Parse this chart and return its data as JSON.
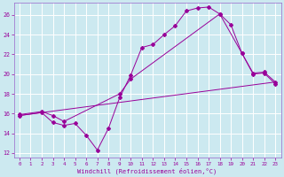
{
  "xlabel": "Windchill (Refroidissement éolien,°C)",
  "background_color": "#cce9f0",
  "grid_color": "#ffffff",
  "line_color": "#990099",
  "spine_color": "#9966cc",
  "xlim": [
    -0.5,
    23.5
  ],
  "ylim": [
    11.5,
    27.2
  ],
  "xticks": [
    0,
    1,
    2,
    3,
    4,
    5,
    6,
    7,
    8,
    9,
    10,
    11,
    12,
    13,
    14,
    15,
    16,
    17,
    18,
    19,
    20,
    21,
    22,
    23
  ],
  "yticks": [
    12,
    14,
    16,
    18,
    20,
    22,
    24,
    26
  ],
  "series1_x": [
    0,
    2,
    3,
    4,
    5,
    6,
    7,
    8,
    9,
    10,
    11,
    12,
    13,
    14,
    15,
    16,
    17,
    18,
    19,
    20,
    21,
    22,
    23
  ],
  "series1_y": [
    15.8,
    16.1,
    15.1,
    14.8,
    15.0,
    13.8,
    12.3,
    14.5,
    17.6,
    19.9,
    22.7,
    23.0,
    24.0,
    24.9,
    26.4,
    26.7,
    26.8,
    26.1,
    25.0,
    22.1,
    20.0,
    20.1,
    19.0
  ],
  "series2_x": [
    0,
    2,
    3,
    4,
    9,
    10,
    18,
    20,
    21,
    22,
    23
  ],
  "series2_y": [
    15.9,
    16.2,
    15.8,
    15.2,
    18.0,
    19.5,
    26.1,
    22.1,
    20.1,
    20.2,
    19.2
  ],
  "series3_x": [
    0,
    23
  ],
  "series3_y": [
    15.8,
    19.2
  ]
}
